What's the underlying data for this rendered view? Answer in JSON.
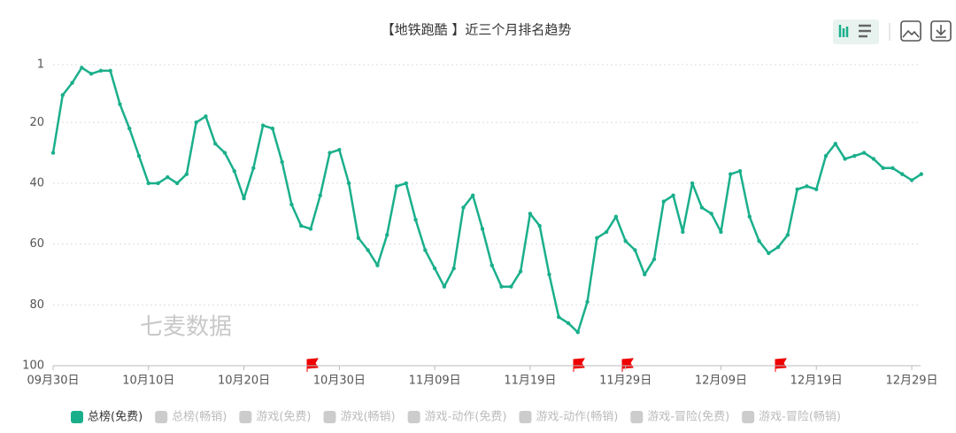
{
  "chart_data": {
    "type": "line",
    "title": "【地铁跑酷 】近三个月排名趋势",
    "watermark": "七麦数据",
    "categories": [
      "09月30日",
      null,
      null,
      null,
      null,
      null,
      null,
      null,
      null,
      null,
      "10月10日",
      null,
      null,
      null,
      null,
      null,
      null,
      null,
      null,
      null,
      "10月20日",
      null,
      null,
      null,
      null,
      null,
      null,
      null,
      null,
      null,
      "10月30日",
      null,
      null,
      null,
      null,
      null,
      null,
      null,
      null,
      null,
      "11月09日",
      null,
      null,
      null,
      null,
      null,
      null,
      null,
      null,
      null,
      "11月19日",
      null,
      null,
      null,
      null,
      null,
      null,
      null,
      null,
      null,
      "11月29日",
      null,
      null,
      null,
      null,
      null,
      null,
      null,
      null,
      null,
      "12月09日",
      null,
      null,
      null,
      null,
      null,
      null,
      null,
      null,
      null,
      "12月19日",
      null,
      null,
      null,
      null,
      null,
      null,
      null,
      null,
      null,
      "12月29日",
      null
    ],
    "series": [
      {
        "name": "总榜(免费)",
        "color": "#1aaf8b",
        "values": [
          30,
          11,
          7,
          2,
          4,
          3,
          3,
          14,
          22,
          31,
          40,
          40,
          38,
          40,
          37,
          20,
          18,
          27,
          30,
          36,
          45,
          35,
          21,
          22,
          33,
          47,
          54,
          55,
          44,
          30,
          29,
          40,
          58,
          62,
          67,
          57,
          41,
          40,
          52,
          62,
          68,
          74,
          68,
          48,
          44,
          55,
          67,
          74,
          74,
          69,
          50,
          54,
          70,
          84,
          86,
          89,
          79,
          58,
          56,
          51,
          59,
          62,
          70,
          65,
          46,
          44,
          56,
          40,
          48,
          50,
          56,
          37,
          36,
          51,
          59,
          63,
          61,
          57,
          42,
          41,
          42,
          31,
          27,
          32,
          31,
          30,
          32,
          35,
          35,
          37,
          39,
          37
        ]
      }
    ],
    "other_legend_items": [
      "总榜(畅销)",
      "游戏(免费)",
      "游戏(畅销)",
      "游戏-动作(免费)",
      "游戏-动作(畅销)",
      "游戏-冒险(免费)",
      "游戏-冒险(畅销)"
    ],
    "inactive_color": "#cccccc",
    "ylim": [
      1,
      100
    ],
    "y_inverted": true,
    "yticks": [
      1,
      20,
      40,
      60,
      80,
      100
    ],
    "grid": true
  }
}
